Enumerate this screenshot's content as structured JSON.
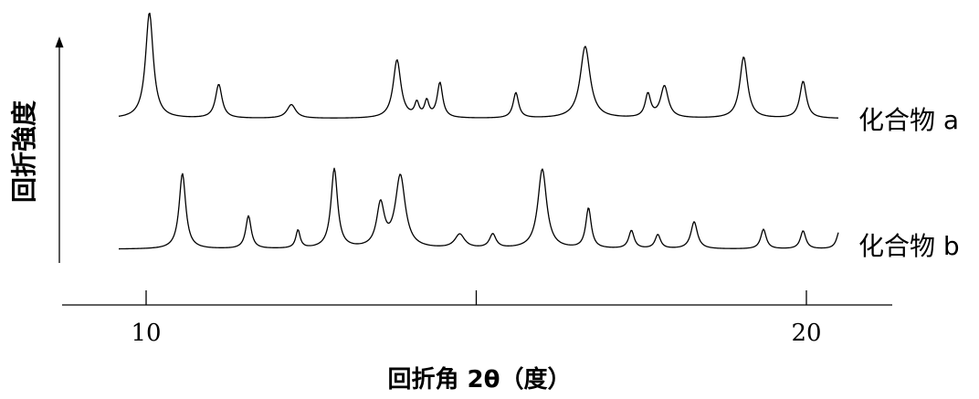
{
  "chart_data": {
    "type": "line",
    "xlabel": "回折角 2θ（度）",
    "ylabel": "回折強度",
    "xlim": [
      9.6,
      20.9
    ],
    "ticks": [
      {
        "value": 10,
        "label": "10"
      },
      {
        "value": 15,
        "label": ""
      },
      {
        "value": 20,
        "label": "20"
      }
    ],
    "grid": false,
    "series": [
      {
        "name": "化合物 a",
        "baseline": 0.0,
        "peaks": [
          [
            10.05,
            1.0,
            0.07
          ],
          [
            11.1,
            0.32,
            0.06
          ],
          [
            12.2,
            0.13,
            0.08
          ],
          [
            13.8,
            0.55,
            0.07
          ],
          [
            14.1,
            0.13,
            0.04
          ],
          [
            14.25,
            0.15,
            0.04
          ],
          [
            14.45,
            0.33,
            0.05
          ],
          [
            15.6,
            0.24,
            0.05
          ],
          [
            16.65,
            0.68,
            0.09
          ],
          [
            17.6,
            0.22,
            0.05
          ],
          [
            17.85,
            0.3,
            0.07
          ],
          [
            19.05,
            0.58,
            0.07
          ],
          [
            19.95,
            0.35,
            0.06
          ]
        ]
      },
      {
        "name": "化合物 b",
        "baseline": 0.0,
        "peaks": [
          [
            10.55,
            0.92,
            0.06
          ],
          [
            11.55,
            0.4,
            0.05
          ],
          [
            12.3,
            0.22,
            0.04
          ],
          [
            12.85,
            0.97,
            0.06
          ],
          [
            13.55,
            0.52,
            0.07
          ],
          [
            13.85,
            0.88,
            0.09
          ],
          [
            14.75,
            0.17,
            0.09
          ],
          [
            15.25,
            0.17,
            0.06
          ],
          [
            16.0,
            0.97,
            0.08
          ],
          [
            16.7,
            0.49,
            0.05
          ],
          [
            17.35,
            0.22,
            0.05
          ],
          [
            17.75,
            0.17,
            0.05
          ],
          [
            18.3,
            0.33,
            0.06
          ],
          [
            19.35,
            0.24,
            0.05
          ],
          [
            19.95,
            0.22,
            0.05
          ],
          [
            20.5,
            0.22,
            0.05
          ]
        ]
      }
    ]
  }
}
